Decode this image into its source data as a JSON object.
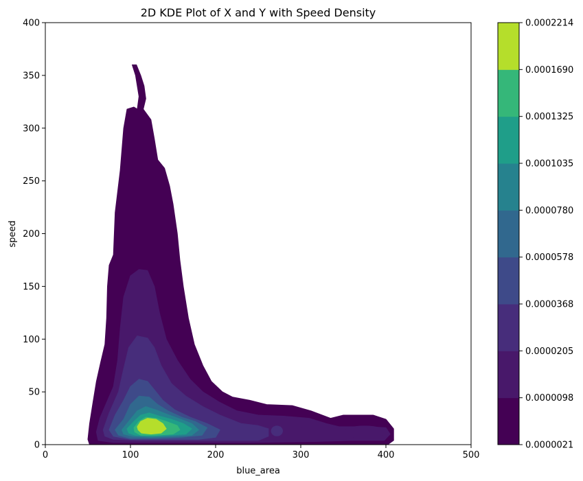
{
  "chart_data": {
    "type": "contour",
    "title": "2D KDE Plot of X and Y with Speed Density",
    "xlabel": "blue_area",
    "ylabel": "speed",
    "xlim": [
      0,
      500
    ],
    "ylim": [
      0,
      400
    ],
    "xticks": [
      0,
      100,
      200,
      300,
      400,
      500
    ],
    "yticks": [
      0,
      50,
      100,
      150,
      200,
      250,
      300,
      350,
      400
    ],
    "grid": false,
    "colorbar": {
      "levels": [
        "0.0000021",
        "0.0000098",
        "0.0000205",
        "0.0000368",
        "0.0000578",
        "0.0000780",
        "0.0001035",
        "0.0001325",
        "0.0001690",
        "0.0002214"
      ],
      "colors": [
        "#440154",
        "#482878",
        "#3e4a89",
        "#31688e",
        "#26828e",
        "#1f9e89",
        "#35b779",
        "#b5de2b",
        "#b5de2b"
      ],
      "band_colors": [
        "#440154",
        "#48186a",
        "#472d7b",
        "#3e4a89",
        "#31688e",
        "#26828e",
        "#1f9e89",
        "#35b779",
        "#b5de2b"
      ]
    },
    "contours": [
      {
        "level": 0,
        "points": [
          [
            50,
            5
          ],
          [
            52,
            20
          ],
          [
            56,
            40
          ],
          [
            60,
            60
          ],
          [
            65,
            78
          ],
          [
            70,
            95
          ],
          [
            72,
            120
          ],
          [
            73,
            150
          ],
          [
            75,
            170
          ],
          [
            80,
            180
          ],
          [
            82,
            220
          ],
          [
            88,
            260
          ],
          [
            92,
            300
          ],
          [
            96,
            318
          ],
          [
            104,
            320
          ],
          [
            108,
            318
          ],
          [
            110,
            330
          ],
          [
            106,
            350
          ],
          [
            102,
            360
          ],
          [
            107,
            360
          ],
          [
            112,
            350
          ],
          [
            116,
            340
          ],
          [
            118,
            328
          ],
          [
            115,
            318
          ],
          [
            124,
            308
          ],
          [
            128,
            290
          ],
          [
            132,
            270
          ],
          [
            140,
            262
          ],
          [
            146,
            245
          ],
          [
            150,
            228
          ],
          [
            155,
            200
          ],
          [
            158,
            175
          ],
          [
            162,
            150
          ],
          [
            168,
            120
          ],
          [
            175,
            95
          ],
          [
            185,
            75
          ],
          [
            195,
            60
          ],
          [
            208,
            50
          ],
          [
            220,
            45
          ],
          [
            240,
            42
          ],
          [
            260,
            38
          ],
          [
            290,
            37
          ],
          [
            312,
            32
          ],
          [
            335,
            25
          ],
          [
            350,
            28
          ],
          [
            365,
            28
          ],
          [
            385,
            28
          ],
          [
            400,
            24
          ],
          [
            409,
            15
          ],
          [
            409,
            4
          ],
          [
            402,
            0
          ],
          [
            380,
            0
          ],
          [
            340,
            0
          ],
          [
            300,
            0
          ],
          [
            200,
            0
          ],
          [
            100,
            0
          ],
          [
            52,
            0
          ]
        ]
      },
      {
        "level": 1,
        "points": [
          [
            60,
            12
          ],
          [
            64,
            25
          ],
          [
            72,
            40
          ],
          [
            80,
            55
          ],
          [
            85,
            80
          ],
          [
            88,
            110
          ],
          [
            92,
            140
          ],
          [
            100,
            160
          ],
          [
            110,
            166
          ],
          [
            120,
            165
          ],
          [
            128,
            150
          ],
          [
            134,
            125
          ],
          [
            142,
            100
          ],
          [
            155,
            80
          ],
          [
            170,
            62
          ],
          [
            185,
            50
          ],
          [
            205,
            40
          ],
          [
            225,
            32
          ],
          [
            250,
            28
          ],
          [
            280,
            27
          ],
          [
            310,
            25
          ],
          [
            330,
            20
          ],
          [
            345,
            17
          ],
          [
            360,
            17
          ],
          [
            380,
            17
          ],
          [
            400,
            16
          ],
          [
            405,
            10
          ],
          [
            398,
            4
          ],
          [
            360,
            4
          ],
          [
            320,
            3
          ],
          [
            240,
            2
          ],
          [
            150,
            2
          ],
          [
            80,
            2
          ],
          [
            62,
            4
          ]
        ]
      },
      {
        "level": 2,
        "points": [
          [
            68,
            14
          ],
          [
            75,
            30
          ],
          [
            86,
            50
          ],
          [
            92,
            72
          ],
          [
            98,
            92
          ],
          [
            108,
            103
          ],
          [
            120,
            101
          ],
          [
            128,
            92
          ],
          [
            136,
            75
          ],
          [
            148,
            58
          ],
          [
            165,
            46
          ],
          [
            185,
            36
          ],
          [
            205,
            28
          ],
          [
            230,
            20
          ],
          [
            250,
            18
          ],
          [
            262,
            15
          ],
          [
            262,
            8
          ],
          [
            250,
            4
          ],
          [
            220,
            4
          ],
          [
            170,
            4
          ],
          [
            110,
            4
          ],
          [
            80,
            5
          ],
          [
            70,
            8
          ]
        ]
      },
      {
        "level": 3,
        "points": [
          [
            75,
            14
          ],
          [
            82,
            28
          ],
          [
            92,
            42
          ],
          [
            100,
            55
          ],
          [
            110,
            62
          ],
          [
            120,
            60
          ],
          [
            128,
            52
          ],
          [
            138,
            42
          ],
          [
            152,
            33
          ],
          [
            170,
            26
          ],
          [
            190,
            20
          ],
          [
            205,
            14
          ],
          [
            200,
            7
          ],
          [
            180,
            5
          ],
          [
            140,
            5
          ],
          [
            100,
            5
          ],
          [
            80,
            8
          ]
        ]
      },
      {
        "level": 4,
        "points": [
          [
            82,
            14
          ],
          [
            92,
            24
          ],
          [
            100,
            38
          ],
          [
            110,
            46
          ],
          [
            122,
            45
          ],
          [
            132,
            38
          ],
          [
            144,
            32
          ],
          [
            160,
            26
          ],
          [
            176,
            22
          ],
          [
            190,
            16
          ],
          [
            184,
            9
          ],
          [
            160,
            7
          ],
          [
            130,
            6
          ],
          [
            100,
            6
          ],
          [
            86,
            9
          ]
        ]
      },
      {
        "level": 5,
        "points": [
          [
            90,
            14
          ],
          [
            100,
            24
          ],
          [
            108,
            32
          ],
          [
            118,
            36
          ],
          [
            130,
            33
          ],
          [
            142,
            29
          ],
          [
            156,
            25
          ],
          [
            172,
            20
          ],
          [
            180,
            14
          ],
          [
            172,
            9
          ],
          [
            150,
            8
          ],
          [
            124,
            7
          ],
          [
            102,
            8
          ],
          [
            92,
            10
          ]
        ]
      },
      {
        "level": 6,
        "points": [
          [
            96,
            15
          ],
          [
            104,
            22
          ],
          [
            112,
            28
          ],
          [
            122,
            30
          ],
          [
            134,
            27
          ],
          [
            148,
            24
          ],
          [
            162,
            20
          ],
          [
            172,
            15
          ],
          [
            165,
            10
          ],
          [
            145,
            9
          ],
          [
            125,
            8
          ],
          [
            105,
            9
          ],
          [
            98,
            11
          ]
        ]
      },
      {
        "level": 7,
        "points": [
          [
            104,
            16
          ],
          [
            110,
            22
          ],
          [
            118,
            26
          ],
          [
            130,
            25
          ],
          [
            142,
            22
          ],
          [
            155,
            18
          ],
          [
            158,
            14
          ],
          [
            150,
            10
          ],
          [
            130,
            9
          ],
          [
            112,
            9
          ],
          [
            105,
            12
          ]
        ]
      },
      {
        "level": 8,
        "points": [
          [
            108,
            17
          ],
          [
            112,
            22
          ],
          [
            120,
            25
          ],
          [
            130,
            24
          ],
          [
            138,
            20
          ],
          [
            142,
            15
          ],
          [
            136,
            11
          ],
          [
            124,
            10
          ],
          [
            113,
            11
          ],
          [
            109,
            14
          ]
        ]
      }
    ],
    "blobs": [
      {
        "level": 1,
        "cx": 285,
        "cy": 12,
        "rx": 22,
        "ry": 7
      },
      {
        "level": 2,
        "cx": 272,
        "cy": 13,
        "rx": 7,
        "ry": 5
      },
      {
        "level": 1,
        "cx": 375,
        "cy": 12,
        "rx": 25,
        "ry": 6
      }
    ]
  }
}
